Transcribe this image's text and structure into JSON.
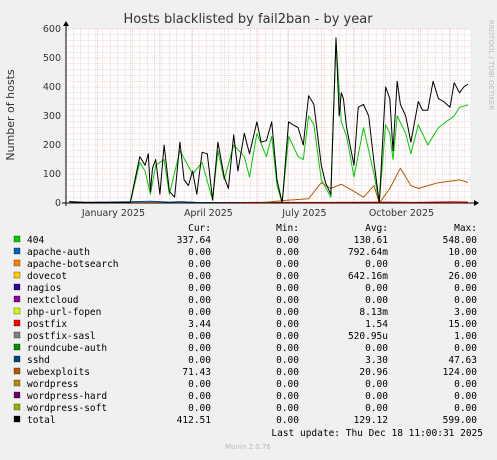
{
  "chart_data": {
    "type": "line",
    "title": "Hosts blacklisted by fail2ban - by year",
    "ylabel": "Number of hosts",
    "side_label": "RRDTOOL / TOBI OETIKER",
    "ylim": [
      0,
      600
    ],
    "yticks": [
      "0",
      "100",
      "200",
      "300",
      "400",
      "500",
      "600"
    ],
    "xticks": [
      "January 2025",
      "April 2025",
      "July 2025",
      "October 2025"
    ],
    "grid": true,
    "legend_headers": {
      "cur": "Cur:",
      "min": "Min:",
      "avg": "Avg:",
      "max": "Max:"
    },
    "legend": [
      {
        "name": "404",
        "color": "#00cc00",
        "cur": "337.64",
        "min": "0.00",
        "avg": "130.61",
        "max": "548.00"
      },
      {
        "name": "apache-auth",
        "color": "#0066b3",
        "cur": "0.00",
        "min": "0.00",
        "avg": "792.64m",
        "max": "10.00"
      },
      {
        "name": "apache-botsearch",
        "color": "#ff8000",
        "cur": "0.00",
        "min": "0.00",
        "avg": "0.00",
        "max": "0.00"
      },
      {
        "name": "dovecot",
        "color": "#ffcc00",
        "cur": "0.00",
        "min": "0.00",
        "avg": "642.16m",
        "max": "26.00"
      },
      {
        "name": "nagios",
        "color": "#330099",
        "cur": "0.00",
        "min": "0.00",
        "avg": "0.00",
        "max": "0.00"
      },
      {
        "name": "nextcloud",
        "color": "#990099",
        "cur": "0.00",
        "min": "0.00",
        "avg": "0.00",
        "max": "0.00"
      },
      {
        "name": "php-url-fopen",
        "color": "#ccff00",
        "cur": "0.00",
        "min": "0.00",
        "avg": "8.13m",
        "max": "3.00"
      },
      {
        "name": "postfix",
        "color": "#ff0000",
        "cur": "3.44",
        "min": "0.00",
        "avg": "1.54",
        "max": "15.00"
      },
      {
        "name": "postfix-sasl",
        "color": "#808080",
        "cur": "0.00",
        "min": "0.00",
        "avg": "520.95u",
        "max": "1.00"
      },
      {
        "name": "roundcube-auth",
        "color": "#008f00",
        "cur": "0.00",
        "min": "0.00",
        "avg": "0.00",
        "max": "0.00"
      },
      {
        "name": "sshd",
        "color": "#00487d",
        "cur": "0.00",
        "min": "0.00",
        "avg": "3.30",
        "max": "47.63"
      },
      {
        "name": "webexploits",
        "color": "#b35a00",
        "cur": "71.43",
        "min": "0.00",
        "avg": "20.96",
        "max": "124.00"
      },
      {
        "name": "wordpress",
        "color": "#b38f00",
        "cur": "0.00",
        "min": "0.00",
        "avg": "0.00",
        "max": "0.00"
      },
      {
        "name": "wordpress-hard",
        "color": "#6b006b",
        "cur": "0.00",
        "min": "0.00",
        "avg": "0.00",
        "max": "0.00"
      },
      {
        "name": "wordpress-soft",
        "color": "#8fb300",
        "cur": "0.00",
        "min": "0.00",
        "avg": "0.00",
        "max": "0.00"
      },
      {
        "name": "total",
        "color": "#000000",
        "cur": "412.51",
        "min": "0.00",
        "avg": "129.12",
        "max": "599.00"
      }
    ],
    "series": [
      {
        "key": "total",
        "color": "#000000",
        "x": [
          "2024-12-05",
          "2024-12-20",
          "2025-01-10",
          "2025-02-01",
          "2025-02-10",
          "2025-02-15",
          "2025-02-18",
          "2025-02-20",
          "2025-02-22",
          "2025-02-25",
          "2025-03-01",
          "2025-03-05",
          "2025-03-10",
          "2025-03-15",
          "2025-03-20",
          "2025-03-24",
          "2025-03-28",
          "2025-04-01",
          "2025-04-05",
          "2025-04-10",
          "2025-04-15",
          "2025-04-20",
          "2025-04-25",
          "2025-05-01",
          "2025-05-05",
          "2025-05-10",
          "2025-05-14",
          "2025-05-20",
          "2025-05-25",
          "2025-06-01",
          "2025-06-05",
          "2025-06-10",
          "2025-06-15",
          "2025-06-20",
          "2025-06-25",
          "2025-07-01",
          "2025-07-05",
          "2025-07-10",
          "2025-07-15",
          "2025-07-20",
          "2025-07-25",
          "2025-08-01",
          "2025-08-05",
          "2025-08-10",
          "2025-08-15",
          "2025-08-18",
          "2025-08-20",
          "2025-08-22",
          "2025-08-25",
          "2025-09-01",
          "2025-09-05",
          "2025-09-10",
          "2025-09-15",
          "2025-09-20",
          "2025-09-25",
          "2025-10-01",
          "2025-10-05",
          "2025-10-08",
          "2025-10-12",
          "2025-10-15",
          "2025-10-20",
          "2025-10-25",
          "2025-11-01",
          "2025-11-05",
          "2025-11-10",
          "2025-11-15",
          "2025-11-20",
          "2025-11-25",
          "2025-12-01",
          "2025-12-05",
          "2025-12-10",
          "2025-12-14",
          "2025-12-18"
        ],
        "values": [
          5,
          2,
          2,
          3,
          160,
          130,
          170,
          40,
          120,
          150,
          30,
          200,
          40,
          20,
          210,
          80,
          60,
          110,
          30,
          175,
          170,
          10,
          210,
          90,
          50,
          235,
          110,
          240,
          170,
          280,
          210,
          215,
          280,
          80,
          0,
          280,
          270,
          260,
          200,
          370,
          340,
          130,
          70,
          30,
          570,
          300,
          380,
          360,
          260,
          130,
          330,
          340,
          300,
          140,
          0,
          400,
          360,
          180,
          420,
          340,
          300,
          210,
          350,
          320,
          320,
          420,
          360,
          350,
          330,
          415,
          380,
          400,
          410
        ]
      },
      {
        "key": "404",
        "color": "#00cc00",
        "x": [
          "2024-12-05",
          "2025-02-01",
          "2025-02-10",
          "2025-02-15",
          "2025-02-20",
          "2025-02-25",
          "2025-03-05",
          "2025-03-10",
          "2025-03-20",
          "2025-04-01",
          "2025-04-10",
          "2025-04-20",
          "2025-04-25",
          "2025-05-01",
          "2025-05-10",
          "2025-05-20",
          "2025-05-25",
          "2025-06-01",
          "2025-06-10",
          "2025-06-15",
          "2025-06-20",
          "2025-06-25",
          "2025-07-01",
          "2025-07-10",
          "2025-07-15",
          "2025-07-20",
          "2025-07-25",
          "2025-08-01",
          "2025-08-10",
          "2025-08-15",
          "2025-08-20",
          "2025-08-25",
          "2025-09-01",
          "2025-09-10",
          "2025-09-20",
          "2025-09-25",
          "2025-10-01",
          "2025-10-05",
          "2025-10-08",
          "2025-10-12",
          "2025-10-20",
          "2025-10-25",
          "2025-11-01",
          "2025-11-10",
          "2025-11-20",
          "2025-12-01",
          "2025-12-05",
          "2025-12-10",
          "2025-12-18"
        ],
        "values": [
          0,
          0,
          140,
          110,
          30,
          130,
          150,
          30,
          180,
          100,
          140,
          10,
          180,
          80,
          200,
          160,
          90,
          240,
          160,
          230,
          60,
          0,
          230,
          160,
          150,
          300,
          270,
          80,
          20,
          560,
          280,
          230,
          90,
          260,
          100,
          0,
          270,
          240,
          150,
          300,
          240,
          170,
          270,
          200,
          260,
          290,
          300,
          330,
          338
        ]
      },
      {
        "key": "webexploits",
        "color": "#b35a00",
        "x": [
          "2024-12-05",
          "2025-06-01",
          "2025-07-01",
          "2025-07-20",
          "2025-08-01",
          "2025-08-10",
          "2025-08-20",
          "2025-09-01",
          "2025-09-10",
          "2025-09-20",
          "2025-09-25",
          "2025-10-05",
          "2025-10-15",
          "2025-10-25",
          "2025-11-01",
          "2025-11-10",
          "2025-11-20",
          "2025-12-01",
          "2025-12-10",
          "2025-12-18"
        ],
        "values": [
          0,
          0,
          10,
          15,
          70,
          50,
          65,
          40,
          20,
          60,
          0,
          50,
          120,
          60,
          50,
          60,
          70,
          75,
          80,
          71
        ]
      },
      {
        "key": "sshd",
        "color": "#00487d",
        "x": [
          "2024-12-05",
          "2024-12-20",
          "2025-01-10",
          "2025-02-01",
          "2025-02-20",
          "2025-03-10",
          "2025-03-20",
          "2025-04-05",
          "2025-05-01",
          "2025-06-01",
          "2025-07-01",
          "2025-12-18"
        ],
        "values": [
          5,
          2,
          3,
          4,
          6,
          3,
          5,
          2,
          1,
          0,
          0,
          0
        ]
      },
      {
        "key": "postfix",
        "color": "#ff0000",
        "x": [
          "2024-12-05",
          "2025-04-01",
          "2025-06-01",
          "2025-08-01",
          "2025-10-01",
          "2025-11-01",
          "2025-12-01",
          "2025-12-18"
        ],
        "values": [
          0,
          1,
          2,
          2,
          3,
          2,
          4,
          3.44
        ]
      },
      {
        "key": "dovecot",
        "color": "#ffcc00",
        "x": [
          "2024-12-05",
          "2025-03-01",
          "2025-06-01",
          "2025-09-01",
          "2025-12-18"
        ],
        "values": [
          0,
          1,
          0,
          1,
          0
        ]
      }
    ]
  },
  "footer": {
    "last_update": "Last update:  Thu Dec 18 11:00:31 2025",
    "version": "Munin 2.0.76"
  }
}
